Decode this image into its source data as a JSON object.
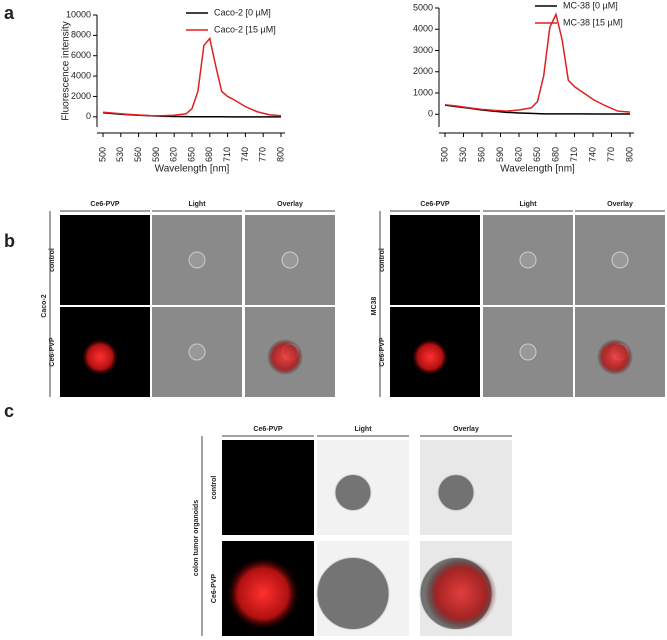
{
  "panel_labels": [
    "a",
    "b",
    "c"
  ],
  "chart_data": [
    {
      "type": "line",
      "x_label": "Wavelength [nm]",
      "y_label": "Fluorescence intensity",
      "legend": "top-right",
      "x": [
        500,
        520,
        540,
        560,
        580,
        600,
        620,
        640,
        650,
        660,
        670,
        680,
        690,
        700,
        710,
        720,
        740,
        760,
        780,
        800
      ],
      "series": [
        {
          "name": "Caco-2 [0 µM]",
          "color": "#000000",
          "values": [
            400,
            300,
            220,
            150,
            100,
            60,
            30,
            20,
            10,
            10,
            10,
            10,
            10,
            10,
            0,
            0,
            0,
            0,
            0,
            0
          ]
        },
        {
          "name": "Caco-2 [15 µM]",
          "color": "#e02020",
          "values": [
            450,
            350,
            250,
            180,
            120,
            100,
            150,
            300,
            800,
            2500,
            7000,
            7700,
            5000,
            2500,
            2000,
            1700,
            1000,
            500,
            200,
            100
          ]
        }
      ],
      "xlim": [
        500,
        800
      ],
      "xticks": [
        500,
        530,
        560,
        590,
        620,
        650,
        680,
        710,
        740,
        770,
        800
      ],
      "ylim": [
        -1000,
        10000
      ],
      "yticks": [
        0,
        2000,
        4000,
        6000,
        8000,
        10000
      ]
    },
    {
      "type": "line",
      "x_label": "Wavelength [nm]",
      "legend": "top-right",
      "x": [
        500,
        520,
        540,
        560,
        580,
        600,
        620,
        640,
        650,
        660,
        670,
        680,
        690,
        700,
        710,
        720,
        740,
        760,
        780,
        800
      ],
      "series": [
        {
          "name": "MC-38 [0 µM]",
          "color": "#000000",
          "values": [
            430,
            350,
            280,
            200,
            140,
            90,
            60,
            40,
            30,
            20,
            20,
            20,
            20,
            20,
            20,
            20,
            10,
            10,
            10,
            10
          ]
        },
        {
          "name": "MC-38 [15 µM]",
          "color": "#e02020",
          "values": [
            450,
            380,
            300,
            230,
            180,
            150,
            200,
            300,
            600,
            1800,
            4100,
            4700,
            3500,
            1600,
            1300,
            1100,
            700,
            400,
            150,
            100
          ]
        }
      ],
      "xlim": [
        500,
        800
      ],
      "xticks": [
        500,
        530,
        560,
        590,
        620,
        650,
        680,
        710,
        740,
        770,
        800
      ],
      "ylim": [
        -600,
        5000
      ],
      "yticks": [
        0,
        1000,
        2000,
        3000,
        4000,
        5000
      ]
    }
  ],
  "microscopy": [
    {
      "group": "Caco-2",
      "columns": [
        "Ce6-PVP",
        "Light",
        "Overlay"
      ],
      "rows": [
        "control",
        "Ce6-PVP"
      ]
    },
    {
      "group": "MC38",
      "columns": [
        "Ce6-PVP",
        "Light",
        "Overlay"
      ],
      "rows": [
        "control",
        "Ce6-PVP"
      ]
    },
    {
      "group": "colon tumor organoids",
      "columns": [
        "Ce6-PVP",
        "Light",
        "Overlay"
      ],
      "rows": [
        "control",
        "Ce6-PVP"
      ]
    }
  ]
}
